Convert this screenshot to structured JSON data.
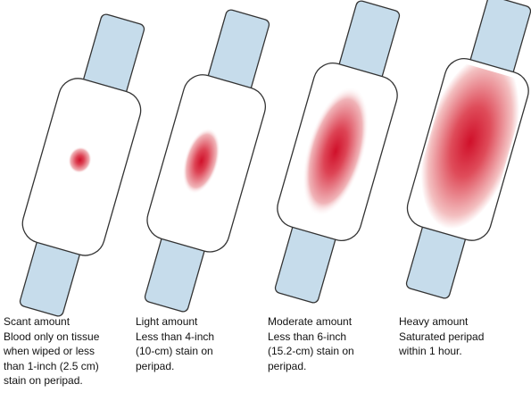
{
  "pads": [
    {
      "title": "Scant amount",
      "lines": [
        "Blood only on tissue",
        "when wiped or less",
        "than 1-inch (2.5 cm)",
        "stain on peripad."
      ]
    },
    {
      "title": "Light amount",
      "lines": [
        "Less than 4-inch",
        "(10-cm) stain on",
        "peripad."
      ]
    },
    {
      "title": "Moderate amount",
      "lines": [
        "Less than 6-inch",
        "(15.2-cm) stain on",
        "peripad."
      ]
    },
    {
      "title": "Heavy amount",
      "lines": [
        "Saturated peripad",
        "within 1 hour."
      ]
    }
  ]
}
